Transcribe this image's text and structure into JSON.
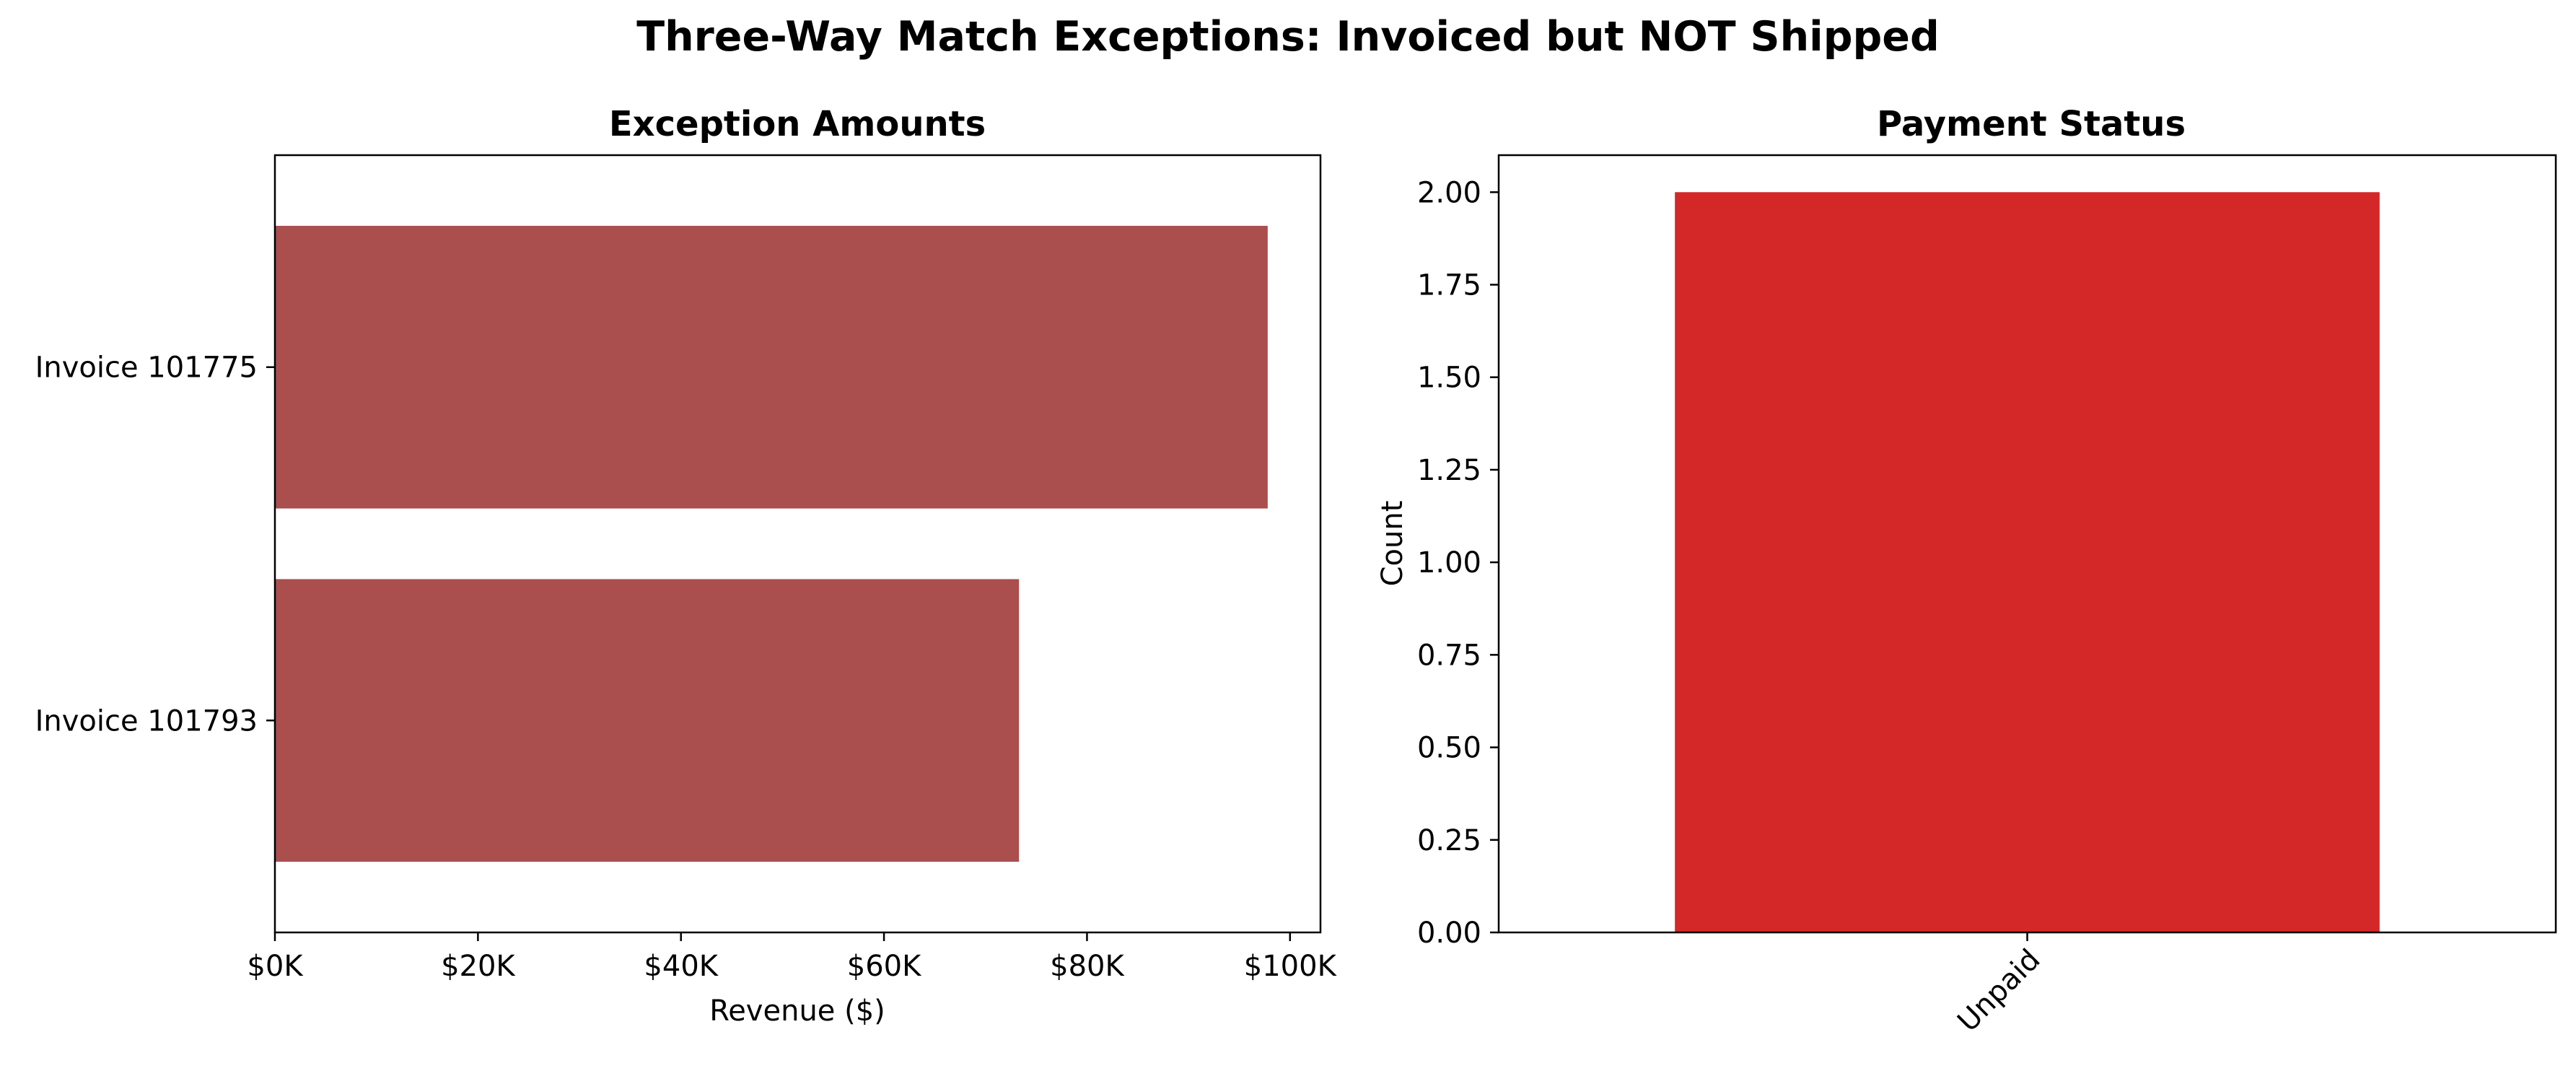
{
  "figure": {
    "title": "Three-Way Match Exceptions: Invoiced but NOT Shipped"
  },
  "chart_data": [
    {
      "type": "bar",
      "orientation": "horizontal",
      "title": "Exception Amounts",
      "xlabel": "Revenue ($)",
      "ylabel": "",
      "categories": [
        "Invoice 101775",
        "Invoice 101793"
      ],
      "values": [
        97800,
        73300
      ],
      "xlim": [
        0,
        103000
      ],
      "xticks": [
        0,
        20000,
        40000,
        60000,
        80000,
        100000
      ],
      "xtick_labels": [
        "$0K",
        "$20K",
        "$40K",
        "$60K",
        "$80K",
        "$100K"
      ],
      "bar_color": "#ab4e4e",
      "grid": false,
      "legend": "none"
    },
    {
      "type": "bar",
      "orientation": "vertical",
      "title": "Payment Status",
      "xlabel": "",
      "ylabel": "Count",
      "categories": [
        "Unpaid"
      ],
      "values": [
        2
      ],
      "ylim": [
        0,
        2.1
      ],
      "yticks": [
        0,
        0.25,
        0.5,
        0.75,
        1.0,
        1.25,
        1.5,
        1.75,
        2.0
      ],
      "ytick_labels": [
        "0.00",
        "0.25",
        "0.50",
        "0.75",
        "1.00",
        "1.25",
        "1.50",
        "1.75",
        "2.00"
      ],
      "bar_color": "#d42728",
      "grid": false,
      "legend": "none"
    }
  ]
}
